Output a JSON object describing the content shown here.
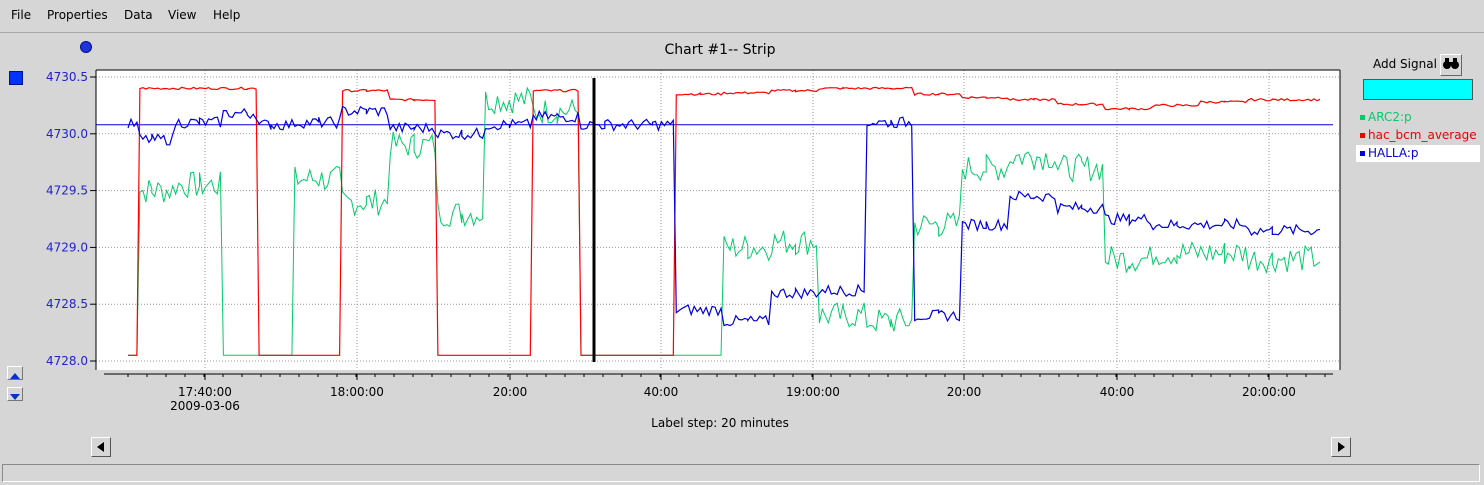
{
  "menu": [
    "File",
    "Properties",
    "Data",
    "View",
    "Help"
  ],
  "chart_title": "Chart #1-- Strip",
  "add_signal_label": "Add Signal",
  "label_step": "Label step: 20 minutes",
  "chart_data": {
    "type": "line",
    "title": "Chart #1-- Strip",
    "ylim": [
      4728.0,
      4730.5
    ],
    "y_ticks": [
      "4730.5",
      "4730.0",
      "4729.5",
      "4729.0",
      "4728.5",
      "4728.0"
    ],
    "x_ticks": [
      "17:40:00",
      "18:00:00",
      "20:00",
      "40:00",
      "19:00:00",
      "20:00",
      "40:00",
      "20:00:00"
    ],
    "x_date_label": "2009-03-06",
    "grid": true,
    "legend_placement": "right",
    "series": [
      {
        "name": "ARC2:p",
        "color": "#00cc66",
        "x": [
          0,
          0.02,
          0.06,
          0.1,
          0.12,
          0.16,
          0.2,
          0.24,
          0.28,
          0.32,
          0.36,
          0.4,
          0.44,
          0.48,
          0.52,
          0.56,
          0.6,
          0.64,
          0.68,
          0.72,
          0.76,
          0.8,
          0.84,
          0.88,
          0.92,
          0.96,
          1.0
        ],
        "values": [
          4728.05,
          4729.5,
          4729.55,
          4728.05,
          4728.05,
          4729.6,
          4729.4,
          4729.9,
          4729.3,
          4730.3,
          4730.2,
          4728.05,
          4728.05,
          4728.05,
          4729.0,
          4729.05,
          4728.4,
          4728.35,
          4729.2,
          4729.7,
          4729.8,
          4729.7,
          4728.9,
          4728.95,
          4728.95,
          4728.9,
          4728.9
        ]
      },
      {
        "name": "hac_bcm_average",
        "color": "#ff0000",
        "x": [
          0,
          0.02,
          0.1,
          0.12,
          0.16,
          0.2,
          0.24,
          0.28,
          0.32,
          0.36,
          0.4,
          0.44,
          0.48,
          0.52,
          0.56,
          0.6,
          0.64,
          0.68,
          0.72,
          0.76,
          0.8,
          0.84,
          0.88,
          0.92,
          0.96,
          1.0
        ],
        "values": [
          4728.05,
          4730.4,
          4730.4,
          4728.05,
          4728.05,
          4730.38,
          4730.3,
          4728.05,
          4728.05,
          4730.38,
          4728.05,
          4728.05,
          4730.35,
          4730.36,
          4730.38,
          4730.4,
          4730.4,
          4730.35,
          4730.32,
          4730.3,
          4730.26,
          4730.22,
          4730.25,
          4730.28,
          4730.3,
          4730.3
        ]
      },
      {
        "name": "HALLA:p",
        "color": "#0000dd",
        "x": [
          0,
          0.02,
          0.06,
          0.1,
          0.12,
          0.16,
          0.2,
          0.24,
          0.28,
          0.32,
          0.36,
          0.4,
          0.44,
          0.48,
          0.52,
          0.56,
          0.6,
          0.64,
          0.68,
          0.72,
          0.76,
          0.8,
          0.84,
          0.88,
          0.92,
          0.96,
          1.0
        ],
        "values": [
          4730.08,
          4729.95,
          4730.1,
          4730.18,
          4730.08,
          4730.1,
          4730.2,
          4730.05,
          4730.0,
          4730.08,
          4730.15,
          4730.08,
          4730.08,
          4728.45,
          4728.35,
          4728.6,
          4728.62,
          4730.1,
          4728.4,
          4729.2,
          4729.45,
          4729.35,
          4729.25,
          4729.2,
          4729.2,
          4729.15,
          4729.15
        ]
      }
    ]
  }
}
